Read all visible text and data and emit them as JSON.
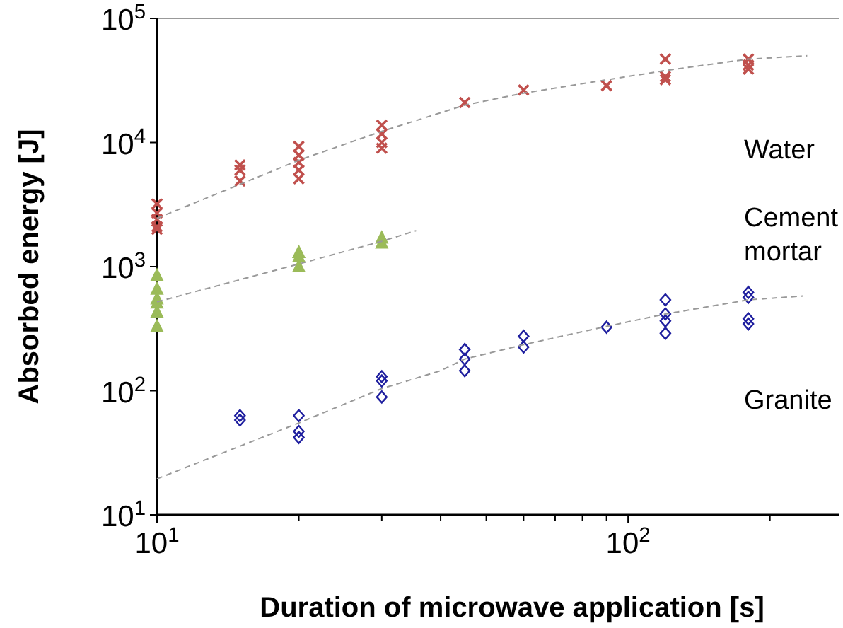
{
  "chart_data": {
    "type": "scatter",
    "xlabel": "Duration of microwave application [s]",
    "ylabel": "Absorbed energy [J]",
    "log": "xy",
    "grid": false,
    "xlim": [
      10,
      280
    ],
    "xticks": [
      {
        "value": 10,
        "label": "10$^{1}$"
      },
      {
        "value": 20,
        "label": null
      },
      {
        "value": 30,
        "label": null
      },
      {
        "value": 40,
        "label": null
      },
      {
        "value": 50,
        "label": null
      },
      {
        "value": 60,
        "label": null
      },
      {
        "value": 70,
        "label": null
      },
      {
        "value": 80,
        "label": null
      },
      {
        "value": 90,
        "label": null
      },
      {
        "value": 100,
        "label": "10$^{2}$"
      },
      {
        "value": 200,
        "label": null
      }
    ],
    "ylim": [
      10,
      100000
    ],
    "yticks": [
      {
        "value": 10,
        "label": "10$^{1}$"
      },
      {
        "value": 100,
        "label": "10$^{2}$"
      },
      {
        "value": 1000,
        "label": "10$^{3}$"
      },
      {
        "value": 10000,
        "label": "10$^{4}$"
      },
      {
        "value": 100000,
        "label": "10$^{5}$"
      }
    ],
    "series": [
      {
        "name": "Water",
        "color": "#c0504d",
        "marker": "cross",
        "x": [
          10,
          10,
          10,
          10,
          10,
          15,
          15,
          15,
          20,
          20,
          20,
          20,
          20,
          30,
          30,
          30,
          30,
          45,
          60,
          90,
          120,
          120,
          120,
          180,
          180,
          180
        ],
        "values": [
          3200,
          2700,
          2400,
          2100,
          2000,
          6600,
          6000,
          4900,
          9300,
          7900,
          6900,
          6000,
          5100,
          13800,
          11700,
          10000,
          9000,
          21000,
          26500,
          28700,
          47000,
          34000,
          32000,
          47000,
          42000,
          39000
        ]
      },
      {
        "name": "Cement mortar",
        "color": "#9bbb59",
        "marker": "triangle",
        "x": [
          10,
          10,
          10,
          10,
          10,
          10,
          20,
          20,
          20,
          30,
          30
        ],
        "values": [
          850,
          660,
          550,
          510,
          430,
          330,
          1300,
          1200,
          1000,
          1700,
          1550
        ]
      },
      {
        "name": "Granite",
        "color": "#1f1f9f",
        "marker": "diamond",
        "x": [
          15,
          15,
          20,
          20,
          20,
          30,
          30,
          30,
          45,
          45,
          45,
          60,
          60,
          90,
          120,
          120,
          120,
          120,
          180,
          180,
          180,
          180
        ],
        "values": [
          63,
          58,
          63,
          47,
          42,
          130,
          120,
          89,
          215,
          180,
          145,
          275,
          225,
          325,
          540,
          415,
          365,
          290,
          620,
          565,
          380,
          345
        ]
      },
      {
        "type": "line",
        "color": "#999999",
        "line_style": "dashed",
        "x": [
          10,
          20,
          30,
          45,
          60,
          90,
          120,
          180,
          240
        ],
        "values": [
          2450,
          7200,
          12300,
          20000,
          25000,
          32000,
          38000,
          47000,
          50000
        ]
      },
      {
        "type": "line",
        "color": "#999999",
        "line_style": "dashed",
        "x": [
          10,
          20,
          30,
          35.5
        ],
        "values": [
          520,
          1050,
          1600,
          1950
        ]
      },
      {
        "type": "line",
        "color": "#999999",
        "line_style": "dashed",
        "x": [
          10,
          20,
          30,
          40,
          45,
          60,
          90,
          120,
          180,
          235
        ],
        "values": [
          19.5,
          55,
          104,
          145,
          180,
          235,
          330,
          415,
          540,
          580
        ]
      }
    ]
  }
}
